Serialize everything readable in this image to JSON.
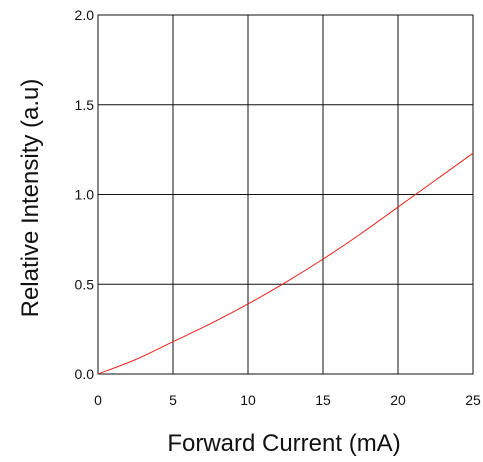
{
  "chart_data": {
    "type": "line",
    "title": "",
    "xlabel": "Forward Current (mA)",
    "ylabel": "Relative Intensity (a.u)",
    "xlim": [
      0,
      25
    ],
    "ylim": [
      0,
      2.0
    ],
    "x_ticks": [
      "0",
      "5",
      "10",
      "15",
      "20",
      "25"
    ],
    "y_ticks": [
      "0.0",
      "0.5",
      "1.0",
      "1.5",
      "2.0"
    ],
    "grid": true,
    "legend": "none",
    "series": [
      {
        "color": "#e8201a",
        "x": [
          0,
          2.5,
          5,
          7.5,
          10,
          12.5,
          15,
          17.5,
          20,
          22.5,
          25
        ],
        "y": [
          0.0,
          0.08,
          0.18,
          0.28,
          0.39,
          0.51,
          0.64,
          0.78,
          0.93,
          1.08,
          1.23
        ]
      }
    ]
  }
}
